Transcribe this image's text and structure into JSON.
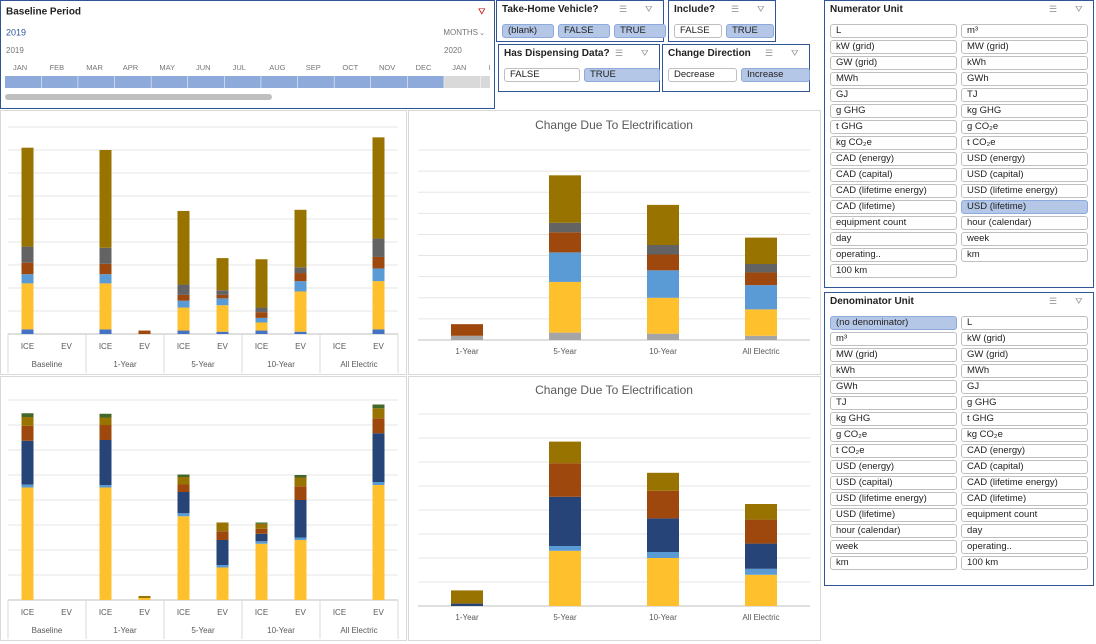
{
  "timeline": {
    "title": "Baseline Period",
    "selected_year": "2019",
    "level": "MONTHS",
    "years": [
      "2019",
      "2020"
    ],
    "months": [
      "JAN",
      "FEB",
      "MAR",
      "APR",
      "MAY",
      "JUN",
      "JUL",
      "AUG",
      "SEP",
      "OCT",
      "NOV",
      "DEC",
      "JAN",
      "FEB"
    ]
  },
  "slicers": [
    {
      "title": "Take-Home Vehicle?",
      "items": [
        {
          "label": "(blank)",
          "selected": true
        },
        {
          "label": "FALSE",
          "selected": true
        },
        {
          "label": "TRUE",
          "selected": true
        }
      ]
    },
    {
      "title": "Include?",
      "items": [
        {
          "label": "FALSE",
          "selected": false
        },
        {
          "label": "TRUE",
          "selected": true
        }
      ]
    },
    {
      "title": "Has Dispensing Data?",
      "items": [
        {
          "label": "FALSE",
          "selected": false
        },
        {
          "label": "TRUE",
          "selected": true
        }
      ]
    },
    {
      "title": "Change Direction",
      "items": [
        {
          "label": "Decrease",
          "selected": false
        },
        {
          "label": "Increase",
          "selected": true
        }
      ]
    },
    {
      "title": "Numerator Unit",
      "items": [
        {
          "label": "L",
          "selected": false
        },
        {
          "label": "m³",
          "selected": false
        },
        {
          "label": "kW (grid)",
          "selected": false
        },
        {
          "label": "MW (grid)",
          "selected": false
        },
        {
          "label": "GW (grid)",
          "selected": false
        },
        {
          "label": "kWh",
          "selected": false
        },
        {
          "label": "MWh",
          "selected": false
        },
        {
          "label": "GWh",
          "selected": false
        },
        {
          "label": "GJ",
          "selected": false
        },
        {
          "label": "TJ",
          "selected": false
        },
        {
          "label": "g GHG",
          "selected": false
        },
        {
          "label": "kg GHG",
          "selected": false
        },
        {
          "label": "t GHG",
          "selected": false
        },
        {
          "label": "g CO₂e",
          "selected": false
        },
        {
          "label": "kg CO₂e",
          "selected": false
        },
        {
          "label": "t CO₂e",
          "selected": false
        },
        {
          "label": "CAD (energy)",
          "selected": false
        },
        {
          "label": "USD (energy)",
          "selected": false
        },
        {
          "label": "CAD (capital)",
          "selected": false
        },
        {
          "label": "USD (capital)",
          "selected": false
        },
        {
          "label": "CAD (lifetime energy)",
          "selected": false
        },
        {
          "label": "USD (lifetime energy)",
          "selected": false
        },
        {
          "label": "CAD (lifetime)",
          "selected": false
        },
        {
          "label": "USD (lifetime)",
          "selected": true
        },
        {
          "label": "equipment count",
          "selected": false
        },
        {
          "label": "hour (calendar)",
          "selected": false
        },
        {
          "label": "day",
          "selected": false
        },
        {
          "label": "week",
          "selected": false
        },
        {
          "label": "operating..",
          "selected": false
        },
        {
          "label": "km",
          "selected": false
        },
        {
          "label": "100 km",
          "selected": false
        }
      ]
    },
    {
      "title": "Denominator Unit",
      "items": [
        {
          "label": "(no denominator)",
          "selected": true
        },
        {
          "label": "L",
          "selected": false
        },
        {
          "label": "m³",
          "selected": false
        },
        {
          "label": "kW (grid)",
          "selected": false
        },
        {
          "label": "MW (grid)",
          "selected": false
        },
        {
          "label": "GW (grid)",
          "selected": false
        },
        {
          "label": "kWh",
          "selected": false
        },
        {
          "label": "MWh",
          "selected": false
        },
        {
          "label": "GWh",
          "selected": false
        },
        {
          "label": "GJ",
          "selected": false
        },
        {
          "label": "TJ",
          "selected": false
        },
        {
          "label": "g GHG",
          "selected": false
        },
        {
          "label": "kg GHG",
          "selected": false
        },
        {
          "label": "t GHG",
          "selected": false
        },
        {
          "label": "g CO₂e",
          "selected": false
        },
        {
          "label": "kg CO₂e",
          "selected": false
        },
        {
          "label": "t CO₂e",
          "selected": false
        },
        {
          "label": "CAD (energy)",
          "selected": false
        },
        {
          "label": "USD (energy)",
          "selected": false
        },
        {
          "label": "CAD (capital)",
          "selected": false
        },
        {
          "label": "USD (capital)",
          "selected": false
        },
        {
          "label": "CAD (lifetime energy)",
          "selected": false
        },
        {
          "label": "USD (lifetime energy)",
          "selected": false
        },
        {
          "label": "CAD (lifetime)",
          "selected": false
        },
        {
          "label": "USD (lifetime)",
          "selected": false
        },
        {
          "label": "equipment count",
          "selected": false
        },
        {
          "label": "hour (calendar)",
          "selected": false
        },
        {
          "label": "day",
          "selected": false
        },
        {
          "label": "week",
          "selected": false
        },
        {
          "label": "operating..",
          "selected": false
        },
        {
          "label": "km",
          "selected": false
        },
        {
          "label": "100 km",
          "selected": false
        }
      ]
    }
  ],
  "chart_data": [
    {
      "type": "bar",
      "stacked": true,
      "grid": true,
      "ylim": [
        0,
        9
      ],
      "yticks": [
        0,
        1,
        2,
        3,
        4,
        5,
        6,
        7,
        8,
        9
      ],
      "groups": [
        "Baseline",
        "1-Year",
        "5-Year",
        "10-Year",
        "All Electric"
      ],
      "categories": [
        "ICE",
        "EV",
        "ICE",
        "EV",
        "ICE",
        "EV",
        "ICE",
        "EV",
        "ICE",
        "EV"
      ],
      "series": [
        {
          "color": "#4472c4",
          "values": [
            0.2,
            0,
            0.2,
            0,
            0.15,
            0.1,
            0.15,
            0.1,
            0,
            0.2
          ]
        },
        {
          "color": "#ffc02e",
          "values": [
            2.0,
            0,
            2.0,
            0,
            1.0,
            1.15,
            0.35,
            1.75,
            0,
            2.1
          ]
        },
        {
          "color": "#5b9bd5",
          "values": [
            0.4,
            0,
            0.4,
            0,
            0.3,
            0.3,
            0.2,
            0.45,
            0,
            0.55
          ]
        },
        {
          "color": "#9e480e",
          "values": [
            0.5,
            0,
            0.45,
            0.15,
            0.25,
            0.15,
            0.25,
            0.35,
            0,
            0.5
          ]
        },
        {
          "color": "#636363",
          "values": [
            0.7,
            0,
            0.7,
            0,
            0.45,
            0.2,
            0.2,
            0.25,
            0,
            0.8
          ]
        },
        {
          "color": "#997300",
          "values": [
            4.3,
            0,
            4.25,
            0,
            3.2,
            1.4,
            2.1,
            2.5,
            0,
            4.4
          ]
        }
      ]
    },
    {
      "type": "bar",
      "stacked": true,
      "grid": true,
      "title": "Change Due To Electrification",
      "ylim": [
        0,
        9
      ],
      "yticks": [
        0,
        1,
        2,
        3,
        4,
        5,
        6,
        7,
        8,
        9
      ],
      "categories": [
        "1-Year",
        "5-Year",
        "10-Year",
        "All Electric"
      ],
      "series": [
        {
          "color": "#a5a5a5",
          "values": [
            0.2,
            0.35,
            0.3,
            0.2
          ]
        },
        {
          "color": "#ffc02e",
          "values": [
            0,
            2.4,
            1.7,
            1.25
          ]
        },
        {
          "color": "#5b9bd5",
          "values": [
            0,
            1.4,
            1.3,
            1.15
          ]
        },
        {
          "color": "#9e480e",
          "values": [
            0.55,
            0.95,
            0.75,
            0.6
          ]
        },
        {
          "color": "#636363",
          "values": [
            0,
            0.45,
            0.45,
            0.4
          ]
        },
        {
          "color": "#997300",
          "values": [
            0,
            2.25,
            1.9,
            1.25
          ]
        }
      ]
    },
    {
      "type": "bar",
      "stacked": true,
      "grid": true,
      "ylim": [
        0,
        8
      ],
      "yticks": [
        0,
        1,
        2,
        3,
        4,
        5,
        6,
        7,
        8
      ],
      "groups": [
        "Baseline",
        "1-Year",
        "5-Year",
        "10-Year",
        "All Electric"
      ],
      "categories": [
        "ICE",
        "EV",
        "ICE",
        "EV",
        "ICE",
        "EV",
        "ICE",
        "EV",
        "ICE",
        "EV"
      ],
      "series": [
        {
          "color": "#ffc02e",
          "values": [
            4.5,
            0,
            4.5,
            0.08,
            3.35,
            1.3,
            2.25,
            2.4,
            0,
            4.6
          ]
        },
        {
          "color": "#5b9bd5",
          "values": [
            0.12,
            0,
            0.1,
            0,
            0.12,
            0.1,
            0.1,
            0.1,
            0,
            0.12
          ]
        },
        {
          "color": "#264478",
          "values": [
            1.75,
            0,
            1.8,
            0,
            0.85,
            1.0,
            0.3,
            1.5,
            0,
            1.95
          ]
        },
        {
          "color": "#9e480e",
          "values": [
            0.6,
            0,
            0.6,
            0,
            0.3,
            0.35,
            0.2,
            0.55,
            0,
            0.6
          ]
        },
        {
          "color": "#997300",
          "values": [
            0.35,
            0,
            0.3,
            0.08,
            0.3,
            0.35,
            0.2,
            0.35,
            0,
            0.4
          ]
        },
        {
          "color": "#43682b",
          "values": [
            0.15,
            0,
            0.15,
            0,
            0.1,
            0,
            0.05,
            0.1,
            0,
            0.15
          ]
        }
      ]
    },
    {
      "type": "bar",
      "stacked": true,
      "grid": true,
      "title": "Change Due To Electrification",
      "ylim": [
        0,
        8
      ],
      "yticks": [
        0,
        1,
        2,
        3,
        4,
        5,
        6,
        7,
        8
      ],
      "categories": [
        "1-Year",
        "5-Year",
        "10-Year",
        "All Electric"
      ],
      "series": [
        {
          "color": "#ffc02e",
          "values": [
            0,
            2.3,
            2.0,
            1.3
          ]
        },
        {
          "color": "#5b9bd5",
          "values": [
            0,
            0.2,
            0.25,
            0.25
          ]
        },
        {
          "color": "#264478",
          "values": [
            0.1,
            2.05,
            1.4,
            1.05
          ]
        },
        {
          "color": "#9e480e",
          "values": [
            0,
            1.4,
            1.15,
            1.0
          ]
        },
        {
          "color": "#997300",
          "values": [
            0.55,
            0.9,
            0.75,
            0.65
          ]
        }
      ]
    }
  ]
}
